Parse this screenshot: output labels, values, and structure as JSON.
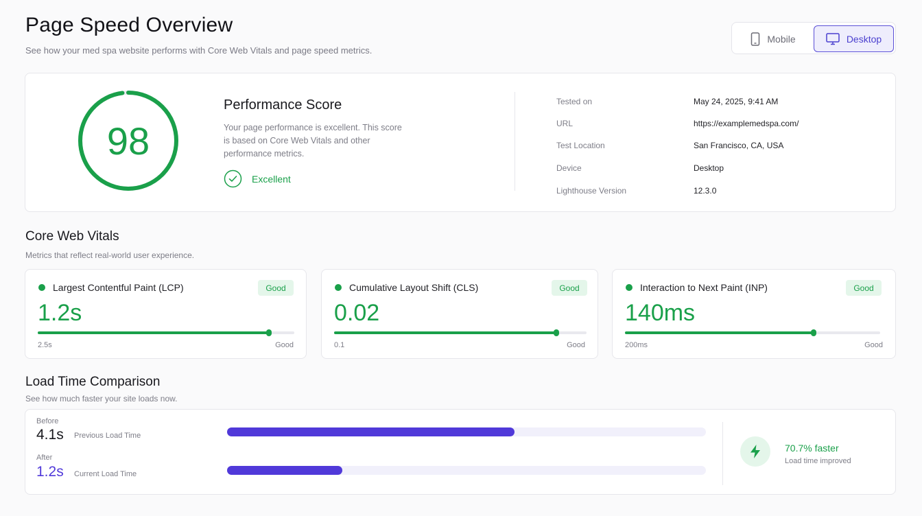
{
  "header": {
    "title": "Page Speed Overview",
    "subtitle": "See how your med spa website performs with Core Web Vitals and page speed metrics."
  },
  "device_toggle": {
    "mobile_label": "Mobile",
    "desktop_label": "Desktop",
    "selected": "Desktop"
  },
  "performance": {
    "score": "98",
    "score_fraction": 0.98,
    "title": "Performance Score",
    "description": "Your page performance is excellent. This score is based on Core Web Vitals and other performance metrics.",
    "rating": "Excellent",
    "meta": [
      {
        "label": "Tested on",
        "value": "May 24, 2025, 9:41 AM"
      },
      {
        "label": "URL",
        "value": "https://examplemedspa.com/"
      },
      {
        "label": "Test Location",
        "value": "San Francisco, CA, USA"
      },
      {
        "label": "Device",
        "value": "Desktop"
      },
      {
        "label": "Lighthouse Version",
        "value": "12.3.0"
      }
    ]
  },
  "core_web_vitals": {
    "title": "Core Web Vitals",
    "subtitle": "Metrics that reflect real-world user experience.",
    "metrics": [
      {
        "name": "Largest Contentful Paint (LCP)",
        "badge": "Good",
        "value": "1.2s",
        "progress": 0.9,
        "min_label": "2.5s",
        "max_label": "Good"
      },
      {
        "name": "Cumulative Layout Shift (CLS)",
        "badge": "Good",
        "value": "0.02",
        "progress": 0.88,
        "min_label": "0.1",
        "max_label": "Good"
      },
      {
        "name": "Interaction to Next Paint (INP)",
        "badge": "Good",
        "value": "140ms",
        "progress": 0.74,
        "min_label": "200ms",
        "max_label": "Good"
      }
    ]
  },
  "load_time": {
    "title": "Load Time Comparison",
    "subtitle": "See how much faster your site loads now.",
    "before": {
      "label": "Before",
      "value": "4.1s",
      "desc": "Previous Load Time",
      "progress": 0.6
    },
    "after": {
      "label": "After",
      "value": "1.2s",
      "desc": "Current Load Time",
      "progress": 0.24
    },
    "improvement": "70.7% faster",
    "improvement_desc": "Load time improved"
  },
  "colors": {
    "good": "#1aa04a",
    "accent": "#5039d9"
  }
}
